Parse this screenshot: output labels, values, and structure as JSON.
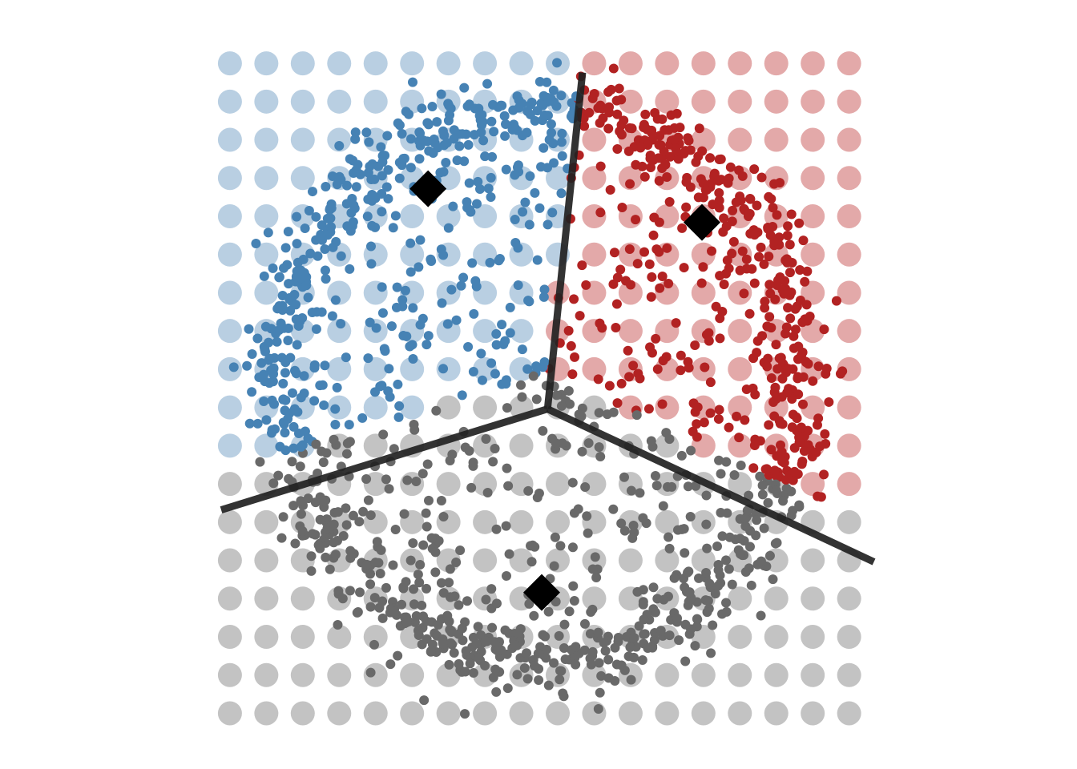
{
  "chart_data": {
    "type": "scatter",
    "title": "",
    "xlabel": "",
    "ylabel": "",
    "xlim": [
      -1.1,
      1.1
    ],
    "ylim": [
      -1.1,
      1.1
    ],
    "axes_visible": false,
    "grid": false,
    "legend": "none",
    "colors": {
      "blue": "#4682B4",
      "red": "#B22222",
      "gray": "#696969",
      "blue_light": "#B9CFE2",
      "red_light": "#E3A9A9",
      "gray_light": "#C3C3C3",
      "boundary": "#222222",
      "centroid": "#000000"
    },
    "cluster_order": [
      "blue",
      "red",
      "gray"
    ],
    "centroids": [
      {
        "cluster": "blue",
        "x": -0.39,
        "y": 0.64
      },
      {
        "cluster": "red",
        "x": 0.55,
        "y": 0.53
      },
      {
        "cluster": "gray",
        "x": 0.0,
        "y": -0.68
      }
    ],
    "background_grid": {
      "x": [
        -1.07,
        -0.945,
        -0.82,
        -0.695,
        -0.57,
        -0.445,
        -0.32,
        -0.195,
        -0.07,
        0.055,
        0.18,
        0.305,
        0.43,
        0.555,
        0.68,
        0.805,
        0.93,
        1.055
      ],
      "y": [
        1.05,
        0.925,
        0.8,
        0.675,
        0.55,
        0.425,
        0.3,
        0.175,
        0.05,
        -0.075,
        -0.2,
        -0.325,
        -0.45,
        -0.575,
        -0.7,
        -0.825,
        -0.95,
        -1.075
      ]
    },
    "boundaries": [
      {
        "from": [
          0.02,
          -0.08
        ],
        "to": [
          0.14,
          1.02
        ]
      },
      {
        "from": [
          0.02,
          -0.08
        ],
        "to": [
          -1.1,
          -0.41
        ]
      },
      {
        "from": [
          0.02,
          -0.08
        ],
        "to": [
          1.14,
          -0.58
        ]
      }
    ],
    "data_points": {
      "count": 1500,
      "shape": "noisy ring of outer radius about 1.0 with scatter filling the interior",
      "outer_radius": 1.0
    }
  }
}
